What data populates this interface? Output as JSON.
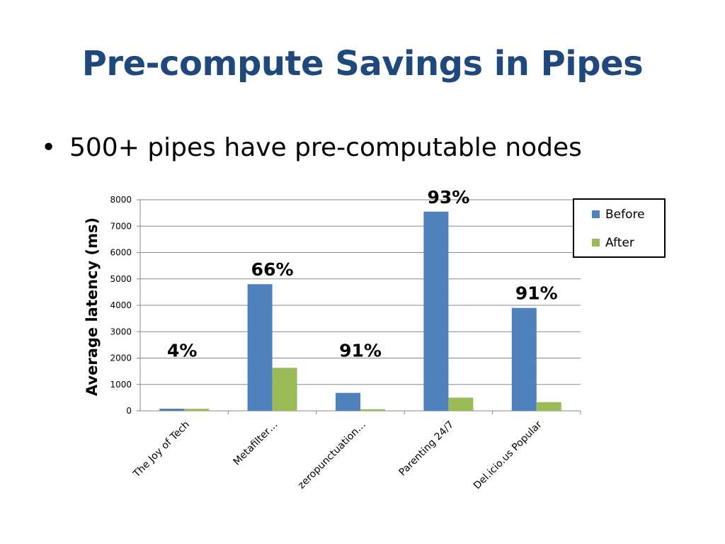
{
  "slide": {
    "title": "Pre-compute Savings in Pipes",
    "bullet": "500+ pipes have pre-computable nodes",
    "bullet_symbol": "•"
  },
  "chart_data": {
    "type": "bar",
    "categories": [
      "The Joy of Tech",
      "Metafilter…",
      "zeropunctuation…",
      "Parenting 24/7",
      "Del.icio.us Popular"
    ],
    "series": [
      {
        "name": "Before",
        "values": [
          80,
          4800,
          680,
          7550,
          3900
        ],
        "color": "#4F81BD"
      },
      {
        "name": "After",
        "values": [
          77,
          1630,
          60,
          500,
          330
        ],
        "color": "#9BBB59"
      }
    ],
    "annotations": [
      "4%",
      "66%",
      "91%",
      "93%",
      "91%"
    ],
    "ylabel": "Average latency (ms)",
    "ylim": [
      0,
      8000
    ],
    "yticks": [
      0,
      1000,
      2000,
      3000,
      4000,
      5000,
      6000,
      7000,
      8000
    ],
    "grid": true,
    "legend_position": "top-right"
  }
}
